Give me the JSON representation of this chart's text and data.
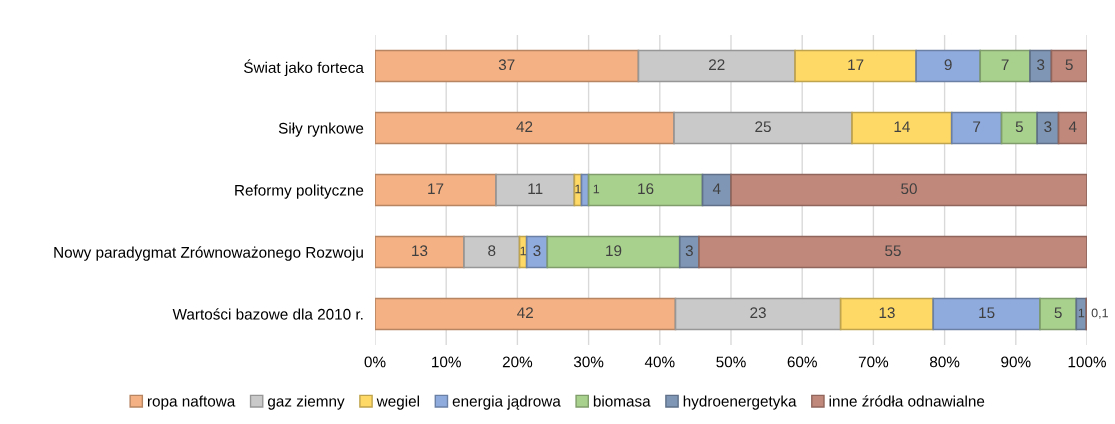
{
  "chart_data": {
    "type": "bar",
    "orientation": "horizontal",
    "stacked": true,
    "categories": [
      "Świat jako forteca",
      "Siły rynkowe",
      "Reformy polityczne",
      "Nowy paradygmat Zrównoważonego Rozwoju",
      "Wartości bazowe dla 2010 r."
    ],
    "series": [
      {
        "name": "ropa naftowa",
        "color": "#f4b183",
        "values": [
          37,
          42,
          17,
          12.5,
          42.2
        ],
        "value_labels": [
          "37",
          "42",
          "17",
          "13",
          "42"
        ]
      },
      {
        "name": "gaz ziemny",
        "color": "#c9c9c9",
        "values": [
          22,
          25,
          11,
          7.8,
          23.2
        ],
        "value_labels": [
          "22",
          "25",
          "11",
          "8",
          "23"
        ]
      },
      {
        "name": "wegiel",
        "color": "#ffd966",
        "values": [
          17,
          14,
          1,
          1,
          13
        ],
        "value_labels": [
          "17",
          "14",
          "1",
          "1",
          "13"
        ]
      },
      {
        "name": "energia jądrowa",
        "color": "#8faadc",
        "values": [
          9,
          7,
          1,
          2.9,
          15
        ],
        "value_labels": [
          "9",
          "7",
          "1",
          "3",
          "15"
        ]
      },
      {
        "name": "biomasa",
        "color": "#a9d18e",
        "values": [
          7,
          5,
          16,
          18.6,
          5.1
        ],
        "value_labels": [
          "7",
          "5",
          "16",
          "19",
          "5"
        ]
      },
      {
        "name": "hydroenergetyka",
        "color": "#7f96b5",
        "values": [
          3,
          3,
          4,
          2.7,
          1.4
        ],
        "value_labels": [
          "3",
          "3",
          "4",
          "3",
          "1"
        ]
      },
      {
        "name": "inne źródła odnawialne",
        "color": "#c0887b",
        "values": [
          5,
          4,
          50,
          54.5,
          0.1
        ],
        "value_labels": [
          "5",
          "4",
          "50",
          "55",
          "0,1"
        ]
      }
    ],
    "xlim": [
      0,
      100
    ],
    "xticks": [
      {
        "value": 0,
        "label": "0%"
      },
      {
        "value": 10,
        "label": "10%"
      },
      {
        "value": 20,
        "label": "20%"
      },
      {
        "value": 30,
        "label": "30%"
      },
      {
        "value": 40,
        "label": "40%"
      },
      {
        "value": 50,
        "label": "50%"
      },
      {
        "value": 60,
        "label": "60%"
      },
      {
        "value": 70,
        "label": "70%"
      },
      {
        "value": 80,
        "label": "80%"
      },
      {
        "value": 90,
        "label": "90%"
      },
      {
        "value": 100,
        "label": "100%"
      }
    ],
    "grid": "x",
    "legend": "bottom"
  }
}
